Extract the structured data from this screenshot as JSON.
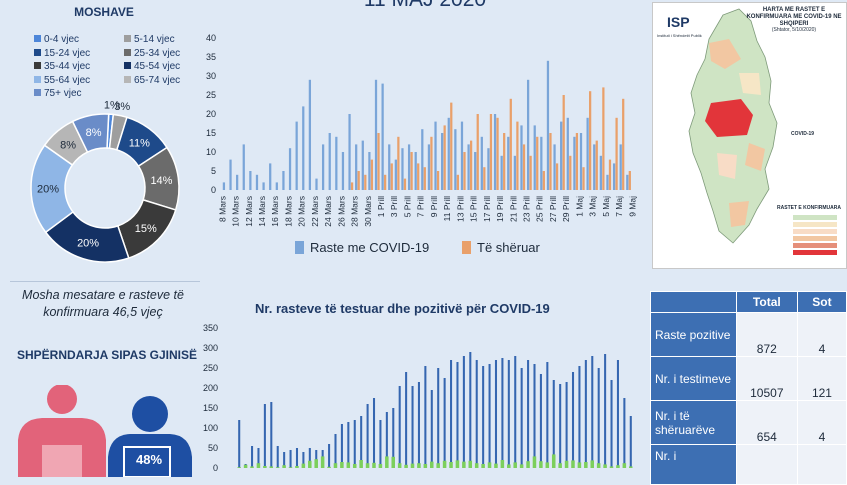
{
  "title": "11 MAJ 2020",
  "age_section": {
    "title": "SHPËRNDARJA NË % E GRUP-MOSHAVE",
    "legend": [
      "0-4 vjec",
      "5-14 vjec",
      "15-24 vjec",
      "25-34 vjec",
      "35-44 vjec",
      "45-54 vjec",
      "55-64 vjec",
      "65-74 vjec",
      "75+ vjec"
    ]
  },
  "average_age": "Mosha mesatare e rasteve të konfirmuara 46,5 vjeç",
  "gender_section": {
    "title": "SHPËRNDARJA SIPAS GJINISË",
    "male_pct": "48%"
  },
  "colors": {
    "cases": "#7aa5d8",
    "recovered": "#e9a06a",
    "tests": "#3566b0",
    "positive": "#7ccf5c",
    "age": [
      "#4d86d9",
      "#9e9e9e",
      "#1e4a8a",
      "#6b6b6b",
      "#3a3a3a",
      "#143164",
      "#8fb6e6",
      "#b6b6b6",
      "#6a8cc8"
    ],
    "female": "#e2637a",
    "male": "#1e4fa3"
  },
  "map": {
    "title": "HARTA ME RASTET E KONFIRMUARA ME COVID-19 NE SHQIPERI",
    "subtitle": "(Shtator, 5/10/2020)",
    "institute": "Instituti i Shëndetit Publik",
    "legend_title": "RASTET E KONFIRMUARA",
    "legend_title_side": "COVID-19"
  },
  "stats_table": {
    "headers": [
      "",
      "Total",
      "Sot"
    ],
    "rows": [
      {
        "label": "Raste pozitive",
        "total": "872",
        "today": "4"
      },
      {
        "label": "Nr. i testimeve",
        "total": "10507",
        "today": "121"
      },
      {
        "label": "Nr. i të shëruarëve",
        "total": "654",
        "today": "4"
      },
      {
        "label": "Nr. i",
        "total": "",
        "today": ""
      }
    ]
  },
  "chart_data": [
    {
      "type": "pie",
      "title": "SHPËRNDARJA NË % E GRUP-MOSHAVE",
      "categories": [
        "0-4 vjec",
        "5-14 vjec",
        "15-24 vjec",
        "25-34 vjec",
        "35-44 vjec",
        "45-54 vjec",
        "55-64 vjec",
        "65-74 vjec",
        "75+ vjec"
      ],
      "values": [
        1,
        3,
        11,
        14,
        15,
        20,
        20,
        8,
        8
      ],
      "labels": [
        "1%",
        "3%",
        "11%",
        "14%",
        "15%",
        "20%",
        "20%",
        "8%",
        "8%"
      ]
    },
    {
      "type": "bar",
      "title": "",
      "xlabel": "",
      "ylabel": "",
      "ylim": [
        0,
        40
      ],
      "yticks": [
        "0",
        "5",
        "10",
        "15",
        "20",
        "25",
        "30",
        "35",
        "40"
      ],
      "tick_labels": [
        "8 Mars",
        "10 Mars",
        "12 Mars",
        "14 Mars",
        "16 Mars",
        "18 Mars",
        "20 Mars",
        "22 Mars",
        "24 Mars",
        "26 Mars",
        "28 Mars",
        "30 Mars",
        "1 Prill",
        "3 Prill",
        "5 Prill",
        "7 Prill",
        "9 Prill",
        "11 Prill",
        "13 Prill",
        "15 Prill",
        "17 Prill",
        "19 Prill",
        "21 Prill",
        "23 Prill",
        "25 Prill",
        "27 Prill",
        "29 Prill",
        "1 Maj",
        "3 Maj",
        "5 Maj",
        "7 Maj",
        "9 Maj"
      ],
      "legend": "bottom",
      "series": [
        {
          "name": "Raste me COVID-19",
          "values": [
            2,
            8,
            4,
            12,
            5,
            4,
            2,
            7,
            2,
            5,
            11,
            18,
            22,
            29,
            3,
            12,
            15,
            14,
            10,
            20,
            12,
            13,
            10,
            29,
            28,
            12,
            8,
            11,
            12,
            10,
            16,
            12,
            18,
            15,
            19,
            16,
            18,
            12,
            10,
            14,
            11,
            20,
            9,
            14,
            9,
            17,
            29,
            17,
            14,
            34,
            12,
            18,
            19,
            14,
            15,
            19,
            12,
            9,
            4,
            7,
            12,
            4
          ]
        },
        {
          "name": "Të shëruar",
          "values": [
            0,
            0,
            0,
            0,
            0,
            0,
            0,
            0,
            0,
            0,
            0,
            0,
            0,
            0,
            0,
            0,
            0,
            0,
            0,
            2,
            5,
            4,
            8,
            15,
            4,
            7,
            14,
            3,
            10,
            7,
            6,
            14,
            5,
            17,
            23,
            4,
            10,
            13,
            20,
            6,
            20,
            19,
            15,
            24,
            18,
            12,
            9,
            14,
            5,
            15,
            7,
            25,
            9,
            15,
            6,
            26,
            13,
            27,
            8,
            19,
            24,
            5
          ]
        }
      ]
    },
    {
      "type": "bar",
      "title": "Nr. rasteve të testuar dhe pozitivë për COVID-19",
      "xlabel": "",
      "ylabel": "",
      "ylim": [
        0,
        350
      ],
      "yticks": [
        "0",
        "50",
        "100",
        "150",
        "200",
        "250",
        "300",
        "350"
      ],
      "series": [
        {
          "name": "Nr. i testimeve",
          "values": [
            120,
            10,
            55,
            50,
            160,
            165,
            55,
            40,
            45,
            50,
            40,
            50,
            45,
            45,
            60,
            85,
            110,
            115,
            120,
            130,
            160,
            175,
            120,
            140,
            150,
            205,
            240,
            205,
            215,
            255,
            195,
            250,
            225,
            270,
            265,
            280,
            290,
            270,
            255,
            260,
            270,
            275,
            270,
            280,
            250,
            270,
            260,
            235,
            265,
            220,
            210,
            215,
            240,
            255,
            270,
            280,
            250,
            285,
            220,
            270,
            175,
            130
          ]
        },
        {
          "name": "Raste pozitive",
          "values": [
            2,
            8,
            4,
            12,
            5,
            4,
            2,
            7,
            2,
            5,
            11,
            18,
            22,
            29,
            3,
            12,
            15,
            14,
            10,
            20,
            12,
            13,
            10,
            29,
            28,
            12,
            8,
            11,
            12,
            10,
            16,
            12,
            18,
            15,
            19,
            16,
            18,
            12,
            10,
            14,
            11,
            20,
            9,
            14,
            9,
            17,
            29,
            17,
            14,
            34,
            12,
            18,
            19,
            14,
            15,
            19,
            12,
            9,
            4,
            7,
            12,
            4
          ]
        }
      ]
    }
  ]
}
